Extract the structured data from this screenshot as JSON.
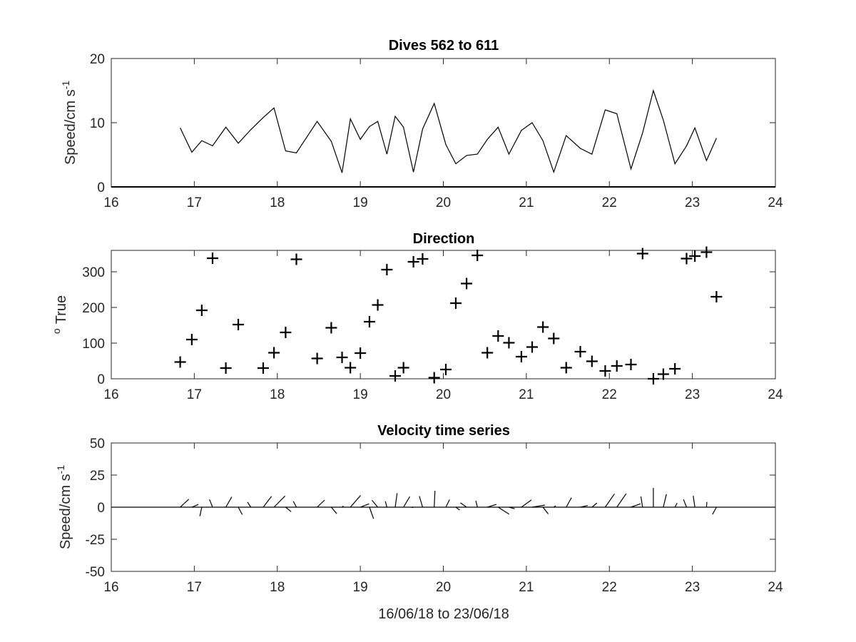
{
  "chart_data": [
    {
      "type": "line",
      "title": "Dives 562 to 611",
      "ylabel": {
        "base": "Speed/cm s",
        "superscript": "-1"
      },
      "xlabel": "",
      "xlim": [
        16,
        24
      ],
      "ylim": [
        0,
        20
      ],
      "xticks": [
        "16",
        "17",
        "18",
        "19",
        "20",
        "21",
        "22",
        "23",
        "24"
      ],
      "yticks": [
        "0",
        "10",
        "20"
      ],
      "grid": false,
      "series": [
        {
          "color": "#000000",
          "x": [
            16.83,
            16.97,
            17.09,
            17.22,
            17.38,
            17.53,
            17.68,
            17.83,
            17.96,
            18.1,
            18.23,
            18.48,
            18.65,
            18.78,
            18.88,
            19.0,
            19.11,
            19.21,
            19.32,
            19.42,
            19.52,
            19.64,
            19.75,
            19.89,
            20.03,
            20.15,
            20.28,
            20.41,
            20.53,
            20.66,
            20.79,
            20.94,
            21.07,
            21.2,
            21.33,
            21.48,
            21.65,
            21.79,
            21.95,
            22.09,
            22.26,
            22.4,
            22.53,
            22.65,
            22.79,
            22.93,
            23.03,
            23.17,
            23.29
          ],
          "y": [
            9.2,
            5.4,
            7.2,
            6.4,
            9.3,
            6.8,
            8.9,
            10.8,
            12.3,
            5.6,
            5.3,
            10.2,
            7.1,
            2.2,
            10.6,
            7.4,
            9.4,
            10.2,
            5.1,
            11.0,
            9.3,
            2.3,
            9.0,
            13.0,
            6.6,
            3.6,
            4.9,
            5.1,
            7.4,
            9.3,
            5.1,
            8.8,
            10.0,
            7.2,
            2.3,
            8.0,
            6.0,
            5.1,
            12.0,
            11.4,
            2.8,
            8.4,
            15.0,
            10.4,
            3.6,
            6.4,
            9.2,
            4.1,
            7.6
          ]
        }
      ]
    },
    {
      "type": "scatter",
      "title": "Direction",
      "ylabel": {
        "superscript": "o",
        "base": "True"
      },
      "xlabel": "",
      "xlim": [
        16,
        24
      ],
      "ylim": [
        0,
        360
      ],
      "xticks": [
        "16",
        "17",
        "18",
        "19",
        "20",
        "21",
        "22",
        "23",
        "24"
      ],
      "yticks": [
        "0",
        "100",
        "200",
        "300"
      ],
      "grid": false,
      "marker": "+",
      "series": [
        {
          "color": "#000000",
          "x": [
            16.83,
            16.97,
            17.09,
            17.22,
            17.38,
            17.53,
            17.83,
            17.96,
            18.1,
            18.23,
            18.48,
            18.65,
            18.78,
            18.88,
            19.0,
            19.11,
            19.21,
            19.32,
            19.42,
            19.52,
            19.64,
            19.75,
            19.89,
            20.03,
            20.15,
            20.28,
            20.41,
            20.53,
            20.66,
            20.79,
            20.94,
            21.07,
            21.2,
            21.33,
            21.48,
            21.65,
            21.79,
            21.95,
            22.09,
            22.26,
            22.4,
            22.53,
            22.65,
            22.79,
            22.93,
            23.03,
            23.17,
            23.29
          ],
          "y": [
            47,
            110,
            192,
            338,
            30,
            152,
            30,
            73,
            130,
            335,
            57,
            143,
            60,
            31,
            72,
            160,
            207,
            306,
            8,
            31,
            328,
            336,
            3,
            26,
            212,
            267,
            346,
            73,
            120,
            101,
            62,
            89,
            145,
            113,
            31,
            76,
            49,
            22,
            36,
            40,
            351,
            0,
            13,
            28,
            337,
            344,
            355,
            230
          ]
        }
      ]
    },
    {
      "type": "quiver",
      "title": "Velocity time series",
      "ylabel": {
        "base": "Speed/cm s",
        "superscript": "-1"
      },
      "xlabel": "16/06/18 to 23/06/18",
      "xlim": [
        16,
        24
      ],
      "ylim": [
        -50,
        50
      ],
      "xticks": [
        "16",
        "17",
        "18",
        "19",
        "20",
        "21",
        "22",
        "23",
        "24"
      ],
      "yticks": [
        "-50",
        "-25",
        "0",
        "25",
        "50"
      ],
      "grid": false,
      "series": [
        {
          "color": "#000000",
          "x": [
            16.83,
            16.97,
            17.09,
            17.22,
            17.38,
            17.53,
            17.68,
            17.83,
            17.96,
            18.1,
            18.23,
            18.48,
            18.65,
            18.78,
            18.88,
            19.0,
            19.11,
            19.21,
            19.32,
            19.42,
            19.52,
            19.64,
            19.75,
            19.89,
            20.03,
            20.15,
            20.28,
            20.41,
            20.53,
            20.66,
            20.79,
            20.94,
            21.07,
            21.2,
            21.33,
            21.48,
            21.65,
            21.79,
            21.95,
            22.09,
            22.26,
            22.4,
            22.53,
            22.65,
            22.79,
            22.93,
            23.03,
            23.17,
            23.29
          ],
          "u": [
            6.7,
            5.1,
            -1.5,
            -2.4,
            4.6,
            3.1,
            -2.5,
            6.5,
            8.6,
            4.3,
            -2.4,
            5.8,
            4.3,
            1.1,
            8.0,
            6.8,
            3.2,
            -4.5,
            -1.2,
            1.5,
            4.9,
            -1.4,
            -2.5,
            0.6,
            2.9,
            3.0,
            -4.8,
            -1.2,
            7.1,
            8.5,
            4.5,
            7.8,
            9.9,
            4.1,
            1.6,
            4.1,
            5.8,
            3.9,
            7.2,
            7.3,
            7.4,
            -1.3,
            0.0,
            2.4,
            1.7,
            -2.4,
            -1.3,
            0.3,
            -3.1
          ],
          "v": [
            6.2,
            2.1,
            -7.0,
            6.0,
            8.0,
            -5.8,
            4.0,
            8.5,
            8.7,
            -3.5,
            4.6,
            5.5,
            -5.1,
            0.9,
            9.2,
            2.6,
            -9.0,
            5.4,
            4.5,
            10.9,
            8.2,
            -0.3,
            8.6,
            12.8,
            5.9,
            -2.2,
            3.4,
            5.0,
            2.2,
            -5.4,
            -1.2,
            5.6,
            1.6,
            -5.3,
            1.1,
            7.4,
            1.3,
            3.2,
            10.4,
            10.6,
            2.6,
            8.3,
            15.0,
            10.1,
            3.2,
            6.0,
            8.9,
            4.1,
            -5.6
          ]
        }
      ]
    }
  ]
}
